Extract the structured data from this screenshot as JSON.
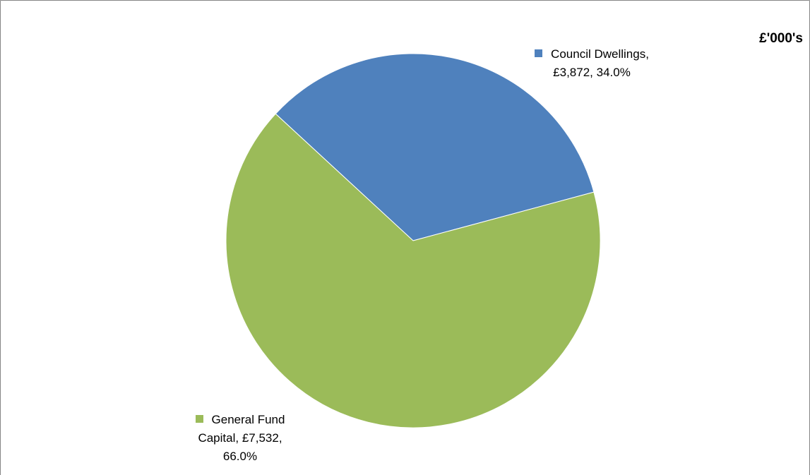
{
  "chart_data": {
    "type": "pie",
    "unit_label": "£'000's",
    "slices": [
      {
        "name": "Council Dwellings",
        "value_text": "£3,872",
        "value": 3872,
        "percent": 34.0,
        "percent_text": "34.0%",
        "color": "#4F81BD"
      },
      {
        "name": "General Fund Capital",
        "value_text": "£7,532",
        "value": 7532,
        "percent": 66.0,
        "percent_text": "66.0%",
        "color": "#9BBB59"
      }
    ]
  },
  "labels": [
    {
      "line1": "Council Dwellings,",
      "line2": "£3,872, 34.0%",
      "line3": ""
    },
    {
      "line1": "General Fund",
      "line2": "Capital, £7,532,",
      "line3": "66.0%"
    }
  ]
}
